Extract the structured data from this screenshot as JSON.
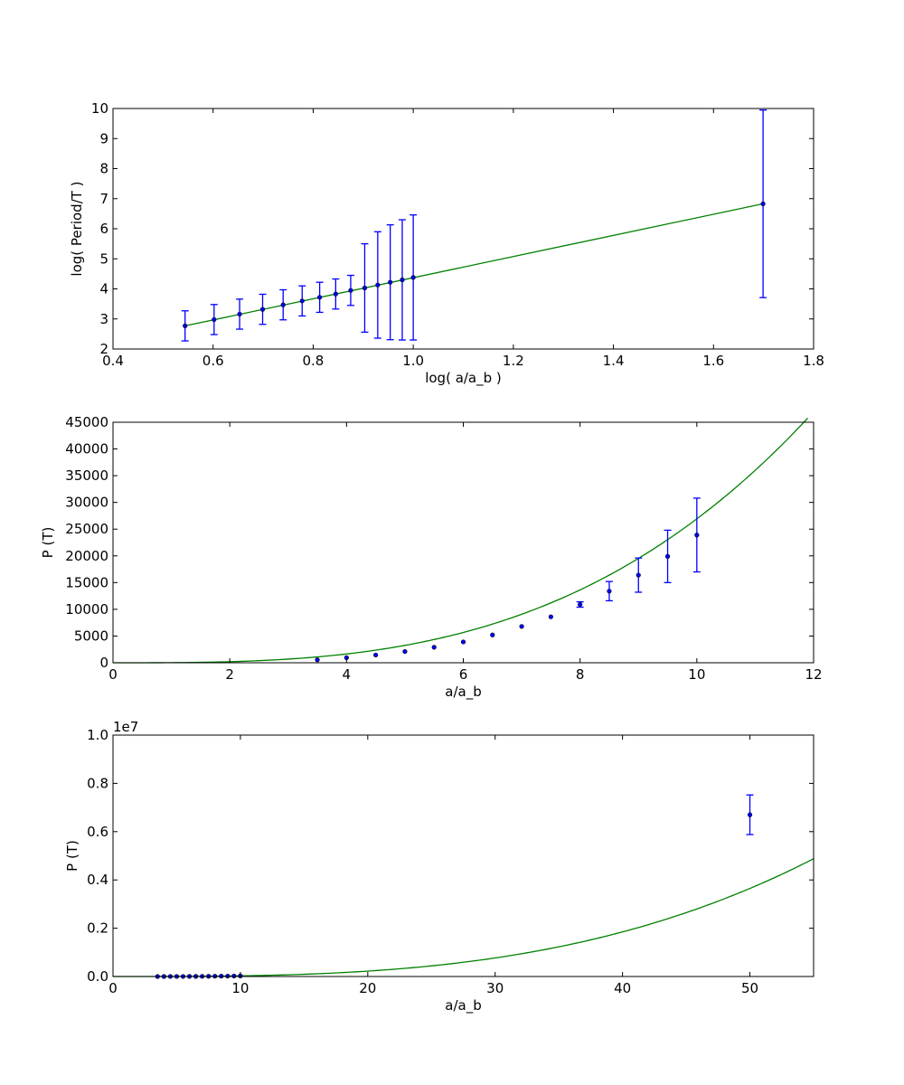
{
  "colors": {
    "fit": "#008000",
    "errorbar": "#0000ff",
    "marker": "#0000ff",
    "marker_edge": "#000000"
  },
  "chart_data": [
    {
      "type": "errorbar_line",
      "xlabel": "log( a/a_b )",
      "ylabel": "log( Period/T )",
      "xlim": [
        0.4,
        1.8
      ],
      "ylim": [
        2,
        10
      ],
      "xticks": [
        0.4,
        0.6,
        0.8,
        1.0,
        1.2,
        1.4,
        1.6,
        1.8
      ],
      "xtick_labels": [
        "0.4",
        "0.6",
        "0.8",
        "1.0",
        "1.2",
        "1.4",
        "1.6",
        "1.8"
      ],
      "yticks": [
        2,
        3,
        4,
        5,
        6,
        7,
        8,
        9,
        10
      ],
      "ytick_labels": [
        "2",
        "3",
        "4",
        "5",
        "6",
        "7",
        "8",
        "9",
        "10"
      ],
      "offset_text": "",
      "fit": {
        "name": "fit",
        "x": [
          0.544,
          1.699
        ],
        "y": [
          2.77,
          6.83
        ]
      },
      "points": [
        {
          "x": 0.544,
          "y": 2.77,
          "err": 0.5
        },
        {
          "x": 0.602,
          "y": 2.98,
          "err": 0.5
        },
        {
          "x": 0.653,
          "y": 3.16,
          "err": 0.5
        },
        {
          "x": 0.699,
          "y": 3.32,
          "err": 0.5
        },
        {
          "x": 0.74,
          "y": 3.47,
          "err": 0.5
        },
        {
          "x": 0.778,
          "y": 3.6,
          "err": 0.5
        },
        {
          "x": 0.813,
          "y": 3.72,
          "err": 0.5
        },
        {
          "x": 0.845,
          "y": 3.83,
          "err": 0.5
        },
        {
          "x": 0.875,
          "y": 3.95,
          "err": 0.5
        },
        {
          "x": 0.903,
          "y": 4.03,
          "err": 1.47
        },
        {
          "x": 0.929,
          "y": 4.13,
          "err": 1.77
        },
        {
          "x": 0.954,
          "y": 4.22,
          "err": 1.91
        },
        {
          "x": 0.978,
          "y": 4.3,
          "err": 2.0
        },
        {
          "x": 1.0,
          "y": 4.38,
          "err": 2.08
        },
        {
          "x": 1.699,
          "y": 6.83,
          "err": 3.12
        }
      ]
    },
    {
      "type": "errorbar_line",
      "xlabel": "a/a_b",
      "ylabel": "P (T)",
      "xlim": [
        0,
        12
      ],
      "ylim": [
        0,
        45000
      ],
      "xticks": [
        0,
        2,
        4,
        6,
        8,
        10,
        12
      ],
      "xtick_labels": [
        "0",
        "2",
        "4",
        "6",
        "8",
        "10",
        "12"
      ],
      "yticks": [
        0,
        5000,
        10000,
        15000,
        20000,
        25000,
        30000,
        35000,
        40000,
        45000
      ],
      "ytick_labels": [
        "0",
        "5000",
        "10000",
        "15000",
        "20000",
        "25000",
        "30000",
        "35000",
        "40000",
        "45000"
      ],
      "offset_text": "",
      "fit": {
        "name": "fit",
        "type": "power",
        "coef": 24.0,
        "exponent": 3.05,
        "x_range": [
          0,
          11.9
        ]
      },
      "points": [
        {
          "x": 3.5,
          "y": 550,
          "err": 0
        },
        {
          "x": 4.0,
          "y": 950,
          "err": 0
        },
        {
          "x": 4.5,
          "y": 1450,
          "err": 0
        },
        {
          "x": 5.0,
          "y": 2100,
          "err": 0
        },
        {
          "x": 5.5,
          "y": 2900,
          "err": 0
        },
        {
          "x": 6.0,
          "y": 3900,
          "err": 0
        },
        {
          "x": 6.5,
          "y": 5200,
          "err": 0
        },
        {
          "x": 7.0,
          "y": 6800,
          "err": 0
        },
        {
          "x": 7.5,
          "y": 8600,
          "err": 0
        },
        {
          "x": 8.0,
          "y": 10900,
          "err": 500
        },
        {
          "x": 8.5,
          "y": 13400,
          "err": 1800
        },
        {
          "x": 9.0,
          "y": 16400,
          "err": 3200
        },
        {
          "x": 9.5,
          "y": 19900,
          "err": 4900
        },
        {
          "x": 10.0,
          "y": 23900,
          "err": 6900
        }
      ]
    },
    {
      "type": "errorbar_line",
      "xlabel": "a/a_b",
      "ylabel": "P (T)",
      "xlim": [
        0,
        55
      ],
      "ylim": [
        0,
        10000000
      ],
      "xticks": [
        0,
        10,
        20,
        30,
        40,
        50
      ],
      "xtick_labels": [
        "0",
        "10",
        "20",
        "30",
        "40",
        "50"
      ],
      "yticks": [
        0,
        2000000,
        4000000,
        6000000,
        8000000,
        10000000
      ],
      "ytick_labels": [
        "0.0",
        "0.2",
        "0.4",
        "0.6",
        "0.8",
        "1.0"
      ],
      "offset_text": "1e7",
      "fit": {
        "name": "fit",
        "type": "power",
        "coef": 24.0,
        "exponent": 3.05,
        "x_range": [
          0,
          55
        ]
      },
      "points": [
        {
          "x": 3.5,
          "y": 550,
          "err": 0
        },
        {
          "x": 4.0,
          "y": 950,
          "err": 0
        },
        {
          "x": 4.5,
          "y": 1450,
          "err": 0
        },
        {
          "x": 5.0,
          "y": 2100,
          "err": 0
        },
        {
          "x": 5.5,
          "y": 2900,
          "err": 0
        },
        {
          "x": 6.0,
          "y": 3900,
          "err": 0
        },
        {
          "x": 6.5,
          "y": 5200,
          "err": 0
        },
        {
          "x": 7.0,
          "y": 6800,
          "err": 0
        },
        {
          "x": 7.5,
          "y": 8600,
          "err": 0
        },
        {
          "x": 8.0,
          "y": 10900,
          "err": 0
        },
        {
          "x": 8.5,
          "y": 13400,
          "err": 0
        },
        {
          "x": 9.0,
          "y": 16400,
          "err": 0
        },
        {
          "x": 9.5,
          "y": 19900,
          "err": 0
        },
        {
          "x": 10.0,
          "y": 23900,
          "err": 0
        },
        {
          "x": 50.0,
          "y": 6700000,
          "err": 820000
        }
      ]
    }
  ]
}
